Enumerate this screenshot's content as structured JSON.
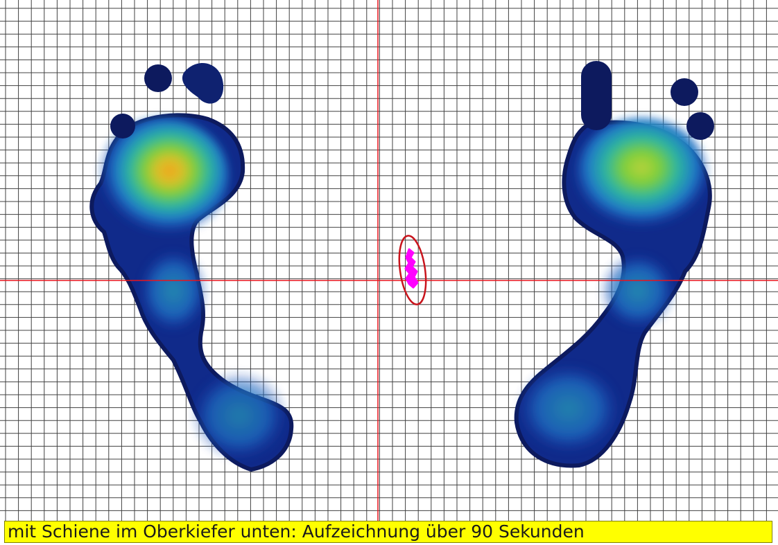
{
  "caption": {
    "text": "mit Schiene im Oberkiefer unten: Aufzeichnung über 90 Sekunden",
    "background": "#ffff00"
  },
  "plot": {
    "grid_color": "#404040",
    "crosshair_color": "#e8141c",
    "ellipse_color": "#c8141c",
    "trace_color": "#ff00ff",
    "heatmap_palette": [
      "#0d1a5e",
      "#1a3fb0",
      "#1f79c8",
      "#2cb5a0",
      "#7fcf3a",
      "#f0a41c"
    ]
  }
}
